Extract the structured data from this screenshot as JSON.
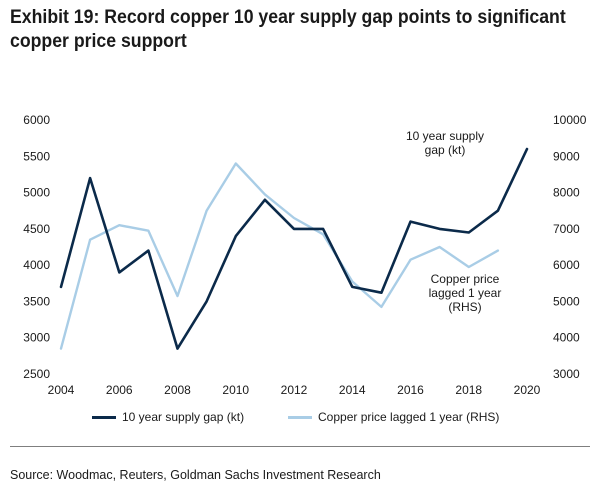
{
  "title": "Exhibit 19: Record copper 10 year supply gap points to significant copper price support",
  "source": "Source: Woodmac, Reuters, Goldman Sachs Investment Research",
  "colors": {
    "dark": "#0b2a4a",
    "light": "#a9cde6"
  },
  "chart_data": {
    "type": "line",
    "title": "Exhibit 19: Record copper 10 year supply gap points to significant copper price support",
    "x_ticks": [
      "2004",
      "2006",
      "2008",
      "2010",
      "2012",
      "2014",
      "2016",
      "2018",
      "2020"
    ],
    "xlim": [
      2004,
      2020
    ],
    "y_left_ticks": [
      "2500",
      "3000",
      "3500",
      "4000",
      "4500",
      "5000",
      "5500",
      "6000"
    ],
    "ylim_left": [
      2500,
      6000
    ],
    "y_right_ticks": [
      "3000",
      "4000",
      "5000",
      "6000",
      "7000",
      "8000",
      "9000",
      "10000"
    ],
    "ylim_right": [
      3000,
      10000
    ],
    "series": [
      {
        "name": "10 year supply gap (kt)",
        "axis": "left",
        "color": "#0b2a4a",
        "x": [
          2004,
          2005,
          2006,
          2007,
          2008,
          2009,
          2010,
          2011,
          2012,
          2013,
          2014,
          2015,
          2016,
          2017,
          2018,
          2019,
          2020
        ],
        "values": [
          3700,
          5200,
          3900,
          4200,
          2850,
          3500,
          4400,
          4900,
          4500,
          4500,
          3700,
          3620,
          4600,
          4500,
          4450,
          4750,
          5600
        ]
      },
      {
        "name": "Copper price lagged 1 year (RHS)",
        "axis": "right",
        "color": "#a9cde6",
        "x": [
          2004,
          2005,
          2006,
          2007,
          2008,
          2009,
          2010,
          2011,
          2012,
          2013,
          2014,
          2015,
          2016,
          2017,
          2018,
          2019
        ],
        "values": [
          3700,
          6700,
          7100,
          6950,
          5150,
          7500,
          8800,
          7950,
          7300,
          6850,
          5550,
          4850,
          6150,
          6500,
          5950,
          6400
        ]
      }
    ],
    "annotations": [
      {
        "lines": [
          "10 year supply",
          "gap (kt)"
        ],
        "series": 0
      },
      {
        "lines": [
          "Copper price",
          "lagged 1 year",
          "(RHS)"
        ],
        "series": 1
      }
    ],
    "legend": {
      "position": "bottom"
    },
    "grid": false
  }
}
